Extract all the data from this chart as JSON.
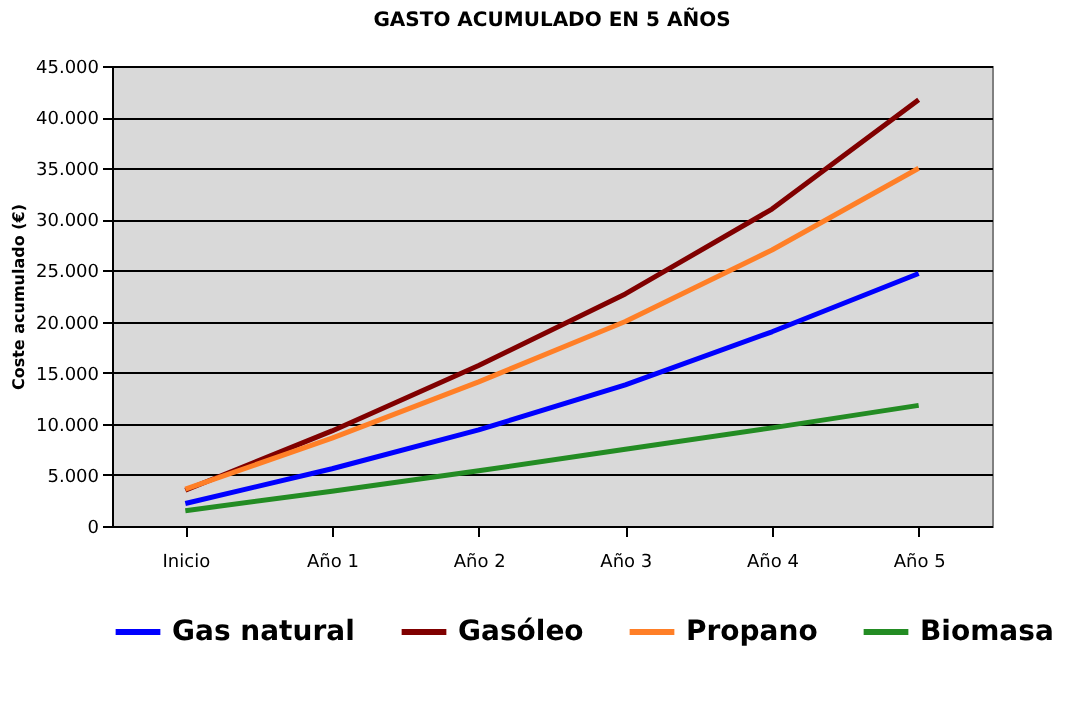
{
  "chart_data": {
    "type": "line",
    "title": "GASTO ACUMULADO EN 5 AÑOS",
    "ylabel": "Coste acumulado (€)",
    "categories": [
      "Inicio",
      "Año 1",
      "Año 2",
      "Año 3",
      "Año 4",
      "Año 5"
    ],
    "series": [
      {
        "name": "Gas natural",
        "color": "#0000ff",
        "values": [
          2200,
          5600,
          9400,
          13800,
          19000,
          24700
        ]
      },
      {
        "name": "Gasóleo",
        "color": "#800000",
        "values": [
          3500,
          9300,
          15700,
          22700,
          31000,
          41700
        ]
      },
      {
        "name": "Propano",
        "color": "#ff7f27",
        "values": [
          3600,
          8600,
          14100,
          20000,
          27000,
          35000
        ]
      },
      {
        "name": "Biomasa",
        "color": "#238c23",
        "values": [
          1500,
          3400,
          5400,
          7500,
          9600,
          11800
        ]
      }
    ],
    "ylim": [
      0,
      45000
    ],
    "yticks": [
      {
        "value": 0,
        "label": "0"
      },
      {
        "value": 5000,
        "label": "5.000"
      },
      {
        "value": 10000,
        "label": "10.000"
      },
      {
        "value": 15000,
        "label": "15.000"
      },
      {
        "value": 20000,
        "label": "20.000"
      },
      {
        "value": 25000,
        "label": "25.000"
      },
      {
        "value": 30000,
        "label": "30.000"
      },
      {
        "value": 35000,
        "label": "35.000"
      },
      {
        "value": 40000,
        "label": "40.000"
      },
      {
        "value": 45000,
        "label": "45.000"
      }
    ],
    "grid": "y",
    "legend": "bottom",
    "marker": "none",
    "line_style": "solid"
  }
}
